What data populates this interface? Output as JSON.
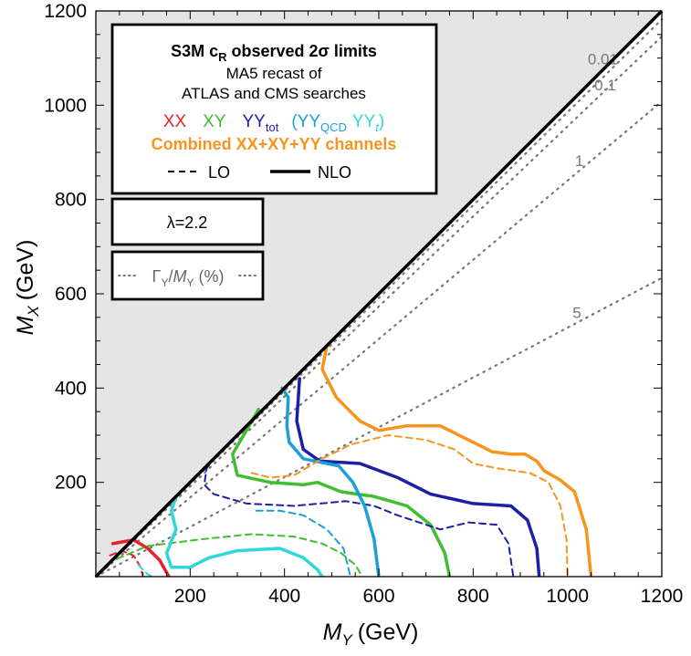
{
  "chart_data": {
    "type": "line",
    "xlabel_var": "M",
    "xlabel_sub": "Y",
    "xlabel_unit": "(GeV)",
    "ylabel_var": "M",
    "ylabel_sub": "X",
    "ylabel_unit": "(GeV)",
    "xlim": [
      0,
      1200
    ],
    "ylim": [
      0,
      1200
    ],
    "xticks": [
      200,
      400,
      600,
      800,
      1000,
      1200
    ],
    "yticks": [
      200,
      400,
      600,
      800,
      1000,
      1200
    ],
    "shaded_region": "M_X > M_Y (excluded)",
    "colors": {
      "XX": "#e8202a",
      "XY": "#3fbf30",
      "YYtot": "#1d1fa8",
      "YYQCD": "#1aa0d8",
      "YYt": "#31d6dc",
      "Combined": "#f7941d",
      "width": "#777777"
    },
    "legend": {
      "title_main": "S3M c",
      "title_sub": "R",
      "title_rest": " observed 2σ limits",
      "line2": "MA5 recast of",
      "line3": "ATLAS and CMS searches",
      "xx": "XX",
      "xy": "XY",
      "yytot_main": "YY",
      "yytot_sub": "tot",
      "paren_open": "(",
      "yyqcd_main": "YY",
      "yyqcd_sub": "QCD",
      "yyt_main": "YY",
      "yyt_sub": "t",
      "paren_close": ")",
      "combined": "Combined XX+XY+YY channels",
      "lo": "LO",
      "nlo": "NLO"
    },
    "lambda_label": "λ=2.2",
    "width_legend": {
      "gamma": "Γ",
      "sub1": "Y",
      "slash": "/",
      "m": "M",
      "sub2": "Y",
      "pct": " (%)"
    },
    "width_lines": [
      {
        "label": "0.01",
        "slope": 0.985
      },
      {
        "label": "0.1",
        "slope": 0.955
      },
      {
        "label": "1",
        "slope": 0.84
      },
      {
        "label": "5",
        "slope": 0.528
      }
    ],
    "series": [
      {
        "name": "XX",
        "order": "NLO",
        "points": [
          [
            36,
            70
          ],
          [
            80,
            78
          ],
          [
            110,
            60
          ],
          [
            135,
            35
          ],
          [
            155,
            0
          ]
        ]
      },
      {
        "name": "XX",
        "order": "LO",
        "points": [
          [
            30,
            45
          ],
          [
            55,
            55
          ],
          [
            80,
            45
          ],
          [
            95,
            20
          ],
          [
            100,
            0
          ]
        ]
      },
      {
        "name": "XY",
        "order": "NLO",
        "points": [
          [
            345,
            355
          ],
          [
            325,
            320
          ],
          [
            290,
            260
          ],
          [
            300,
            215
          ],
          [
            370,
            200
          ],
          [
            440,
            195
          ],
          [
            470,
            200
          ],
          [
            520,
            180
          ],
          [
            590,
            170
          ],
          [
            660,
            150
          ],
          [
            710,
            110
          ],
          [
            740,
            50
          ],
          [
            750,
            0
          ]
        ]
      },
      {
        "name": "XY",
        "order": "LO",
        "points": [
          [
            45,
            38
          ],
          [
            110,
            65
          ],
          [
            230,
            80
          ],
          [
            330,
            90
          ],
          [
            420,
            85
          ],
          [
            480,
            70
          ],
          [
            520,
            50
          ],
          [
            550,
            25
          ],
          [
            565,
            0
          ]
        ]
      },
      {
        "name": "YYtot",
        "order": "NLO",
        "points": [
          [
            432,
            420
          ],
          [
            426,
            330
          ],
          [
            440,
            270
          ],
          [
            475,
            245
          ],
          [
            560,
            240
          ],
          [
            640,
            210
          ],
          [
            710,
            175
          ],
          [
            800,
            155
          ],
          [
            880,
            150
          ],
          [
            915,
            120
          ],
          [
            935,
            60
          ],
          [
            940,
            0
          ]
        ]
      },
      {
        "name": "YYtot",
        "order": "LO",
        "points": [
          [
            255,
            255
          ],
          [
            235,
            230
          ],
          [
            230,
            195
          ],
          [
            250,
            175
          ],
          [
            320,
            155
          ],
          [
            420,
            150
          ],
          [
            530,
            160
          ],
          [
            590,
            150
          ],
          [
            640,
            130
          ],
          [
            730,
            100
          ],
          [
            790,
            115
          ],
          [
            850,
            110
          ],
          [
            875,
            70
          ],
          [
            885,
            0
          ]
        ]
      },
      {
        "name": "YYQCD",
        "order": "NLO",
        "points": [
          [
            395,
            400
          ],
          [
            408,
            380
          ],
          [
            405,
            320
          ],
          [
            410,
            285
          ],
          [
            440,
            250
          ],
          [
            515,
            235
          ],
          [
            545,
            200
          ],
          [
            570,
            150
          ],
          [
            590,
            80
          ],
          [
            600,
            0
          ]
        ]
      },
      {
        "name": "YYQCD",
        "order": "LO",
        "points": [
          [
            340,
            140
          ],
          [
            390,
            140
          ],
          [
            440,
            130
          ],
          [
            490,
            100
          ],
          [
            525,
            60
          ],
          [
            540,
            0
          ]
        ]
      },
      {
        "name": "YYt",
        "order": "NLO",
        "points": [
          [
            170,
            170
          ],
          [
            160,
            140
          ],
          [
            170,
            100
          ],
          [
            150,
            50
          ],
          [
            160,
            20
          ],
          [
            200,
            20
          ],
          [
            240,
            40
          ],
          [
            300,
            55
          ],
          [
            390,
            60
          ],
          [
            440,
            40
          ],
          [
            470,
            15
          ],
          [
            480,
            0
          ]
        ]
      },
      {
        "name": "YYt",
        "order": "LO",
        "points": [
          [
            90,
            25
          ],
          [
            110,
            5
          ],
          [
            120,
            0
          ]
        ]
      },
      {
        "name": "Combined",
        "order": "NLO",
        "points": [
          [
            490,
            490
          ],
          [
            480,
            440
          ],
          [
            510,
            380
          ],
          [
            560,
            330
          ],
          [
            600,
            310
          ],
          [
            660,
            320
          ],
          [
            730,
            320
          ],
          [
            780,
            295
          ],
          [
            840,
            265
          ],
          [
            880,
            260
          ],
          [
            910,
            260
          ],
          [
            935,
            245
          ],
          [
            950,
            225
          ],
          [
            985,
            205
          ],
          [
            1015,
            180
          ],
          [
            1040,
            100
          ],
          [
            1050,
            0
          ]
        ]
      },
      {
        "name": "Combined",
        "order": "LO",
        "points": [
          [
            330,
            220
          ],
          [
            370,
            210
          ],
          [
            420,
            215
          ],
          [
            480,
            250
          ],
          [
            540,
            280
          ],
          [
            620,
            300
          ],
          [
            700,
            290
          ],
          [
            760,
            270
          ],
          [
            800,
            240
          ],
          [
            850,
            230
          ],
          [
            920,
            220
          ],
          [
            960,
            200
          ],
          [
            985,
            150
          ],
          [
            998,
            80
          ],
          [
            1000,
            0
          ]
        ]
      }
    ]
  }
}
